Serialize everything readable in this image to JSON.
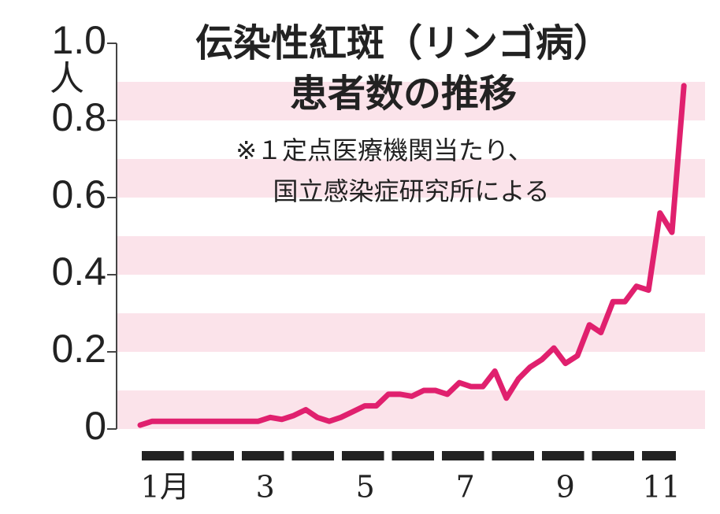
{
  "chart_data": {
    "type": "line",
    "title_lines": [
      "伝染性紅斑（リンゴ病）",
      "患者数の推移"
    ],
    "note_lines": [
      "※１定点医療機関当たり、",
      "国立感染症研究所による"
    ],
    "y_unit": "人",
    "categories": [
      "1月",
      null,
      "3",
      null,
      "5",
      null,
      "7",
      null,
      "9",
      null,
      "11"
    ],
    "xlim": [
      0,
      11
    ],
    "ylim": [
      0,
      1
    ],
    "yticks": [
      0,
      0.2,
      0.4,
      0.6,
      0.8,
      {
        "value": 1,
        "label": "1.0"
      }
    ],
    "grid": "bands",
    "band_color": "#fbe3ea",
    "series": [
      {
        "color": "#e0206e",
        "x": [
          0,
          0.24,
          0.47,
          0.71,
          0.94,
          1.18,
          1.42,
          1.65,
          1.89,
          2.13,
          2.36,
          2.6,
          2.83,
          3.07,
          3.31,
          3.54,
          3.78,
          4.01,
          4.25,
          4.49,
          4.72,
          4.96,
          5.2,
          5.43,
          5.67,
          5.9,
          6.14,
          6.38,
          6.61,
          6.85,
          7.09,
          7.32,
          7.56,
          7.79,
          8.03,
          8.27,
          8.5,
          8.74,
          8.98,
          9.21,
          9.45,
          9.69,
          9.92,
          10.16,
          10.39,
          10.63,
          10.87
        ],
        "values": [
          0.01,
          0.02,
          0.02,
          0.02,
          0.02,
          0.02,
          0.02,
          0.02,
          0.02,
          0.02,
          0.02,
          0.03,
          0.025,
          0.035,
          0.05,
          0.03,
          0.02,
          0.03,
          0.045,
          0.06,
          0.06,
          0.09,
          0.09,
          0.085,
          0.1,
          0.1,
          0.09,
          0.12,
          0.11,
          0.11,
          0.15,
          0.08,
          0.13,
          0.16,
          0.18,
          0.21,
          0.17,
          0.19,
          0.27,
          0.25,
          0.33,
          0.33,
          0.37,
          0.36,
          0.56,
          0.51,
          0.89
        ]
      }
    ]
  }
}
